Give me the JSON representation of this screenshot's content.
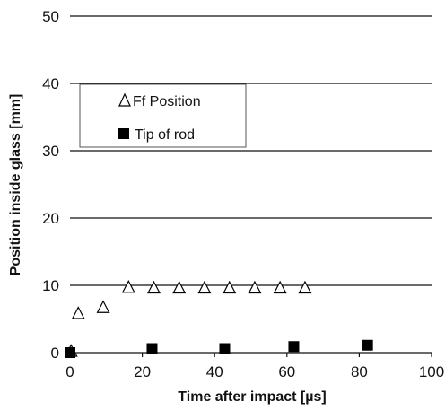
{
  "chart_data": {
    "type": "scatter",
    "xlabel": "Time after impact [µs]",
    "ylabel": "Position inside glass [mm]",
    "xlim": [
      0,
      100
    ],
    "ylim": [
      0,
      50
    ],
    "xticks": [
      "0",
      "20",
      "40",
      "60",
      "80",
      "100"
    ],
    "yticks": [
      "0",
      "10",
      "20",
      "30",
      "40",
      "50"
    ],
    "grid": "horizontal",
    "legend_placement": "upper-left",
    "series": [
      {
        "name": "Ff Position",
        "marker": "open-triangle",
        "color": "#000000",
        "points": [
          {
            "x": 0.3,
            "y": 0.2
          },
          {
            "x": 2.3,
            "y": 5.8
          },
          {
            "x": 9.2,
            "y": 6.7
          },
          {
            "x": 16.2,
            "y": 9.7
          },
          {
            "x": 23.2,
            "y": 9.6
          },
          {
            "x": 30.2,
            "y": 9.6
          },
          {
            "x": 37.2,
            "y": 9.6
          },
          {
            "x": 44.1,
            "y": 9.6
          },
          {
            "x": 51.1,
            "y": 9.6
          },
          {
            "x": 58.1,
            "y": 9.6
          },
          {
            "x": 65.0,
            "y": 9.6
          }
        ]
      },
      {
        "name": "Tip of rod",
        "marker": "filled-square",
        "color": "#000000",
        "points": [
          {
            "x": 0.0,
            "y": 0.0
          },
          {
            "x": 22.7,
            "y": 0.6
          },
          {
            "x": 42.8,
            "y": 0.6
          },
          {
            "x": 61.9,
            "y": 0.9
          },
          {
            "x": 82.3,
            "y": 1.1
          }
        ]
      }
    ]
  }
}
